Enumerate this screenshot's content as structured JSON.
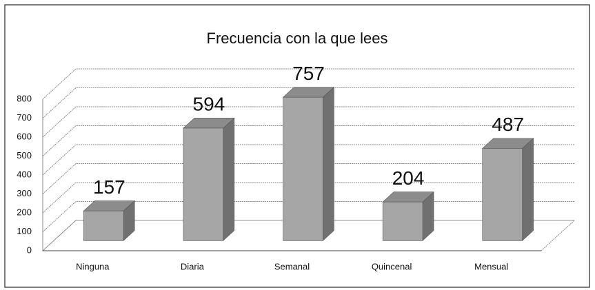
{
  "chart_data": {
    "type": "bar3d",
    "title": "Frecuencia con la que lees",
    "categories": [
      "Ninguna",
      "Diaria",
      "Semanal",
      "Quincenal",
      "Mensual"
    ],
    "values": [
      157,
      594,
      757,
      204,
      487
    ],
    "color": "#a6a6a6",
    "ylim": [
      0,
      800
    ],
    "yticks": [
      0,
      100,
      200,
      300,
      400,
      500,
      600,
      700,
      800
    ],
    "grid": true
  }
}
